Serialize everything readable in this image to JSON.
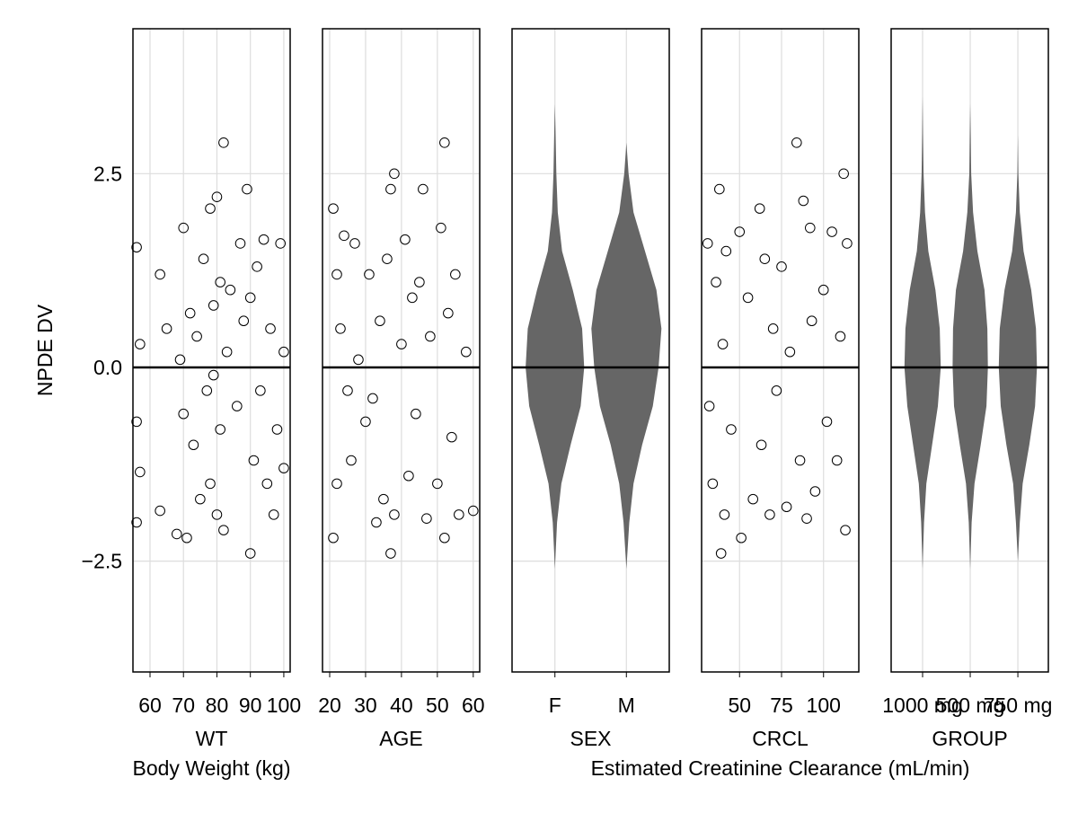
{
  "chart_data": [
    {
      "type": "scatter",
      "xlabel": "WT",
      "xsublabel": "Body Weight (kg)",
      "ylabel": "NPDE DV",
      "xlim": [
        54.9,
        101.9
      ],
      "xticks": [
        60,
        70,
        80,
        90,
        100
      ],
      "ylim": [
        -3.93,
        4.37
      ],
      "yticks": [
        {
          "value": -2.5,
          "label": "−2.5"
        },
        {
          "value": 0,
          "label": "0.0"
        },
        2.5
      ],
      "hline": 0,
      "grid": true,
      "color": "#000000",
      "x": [
        56,
        56,
        56,
        57,
        57,
        63,
        63,
        65,
        68,
        69,
        70,
        70,
        71,
        72,
        73,
        74,
        75,
        76,
        77,
        78,
        78,
        79,
        79,
        80,
        80,
        81,
        81,
        82,
        82,
        83,
        84,
        86,
        87,
        88,
        89,
        90,
        90,
        91,
        92,
        93,
        94,
        95,
        96,
        97,
        98,
        99,
        100,
        100
      ],
      "y": [
        1.55,
        -0.7,
        -2.0,
        0.3,
        -1.35,
        1.2,
        -1.85,
        0.5,
        -2.15,
        0.1,
        1.8,
        -0.6,
        -2.2,
        0.7,
        -1.0,
        0.4,
        -1.7,
        1.4,
        -0.3,
        2.05,
        -1.5,
        0.8,
        -0.1,
        2.2,
        -1.9,
        1.1,
        -0.8,
        2.9,
        -2.1,
        0.2,
        1.0,
        -0.5,
        1.6,
        0.6,
        2.3,
        -2.4,
        0.9,
        -1.2,
        1.3,
        -0.3,
        1.65,
        -1.5,
        0.5,
        -1.9,
        -0.8,
        1.6,
        0.2,
        -1.3
      ]
    },
    {
      "type": "scatter",
      "xlabel": "AGE",
      "xlim": [
        18.0,
        61.8
      ],
      "xticks": [
        20,
        30,
        40,
        50,
        60
      ],
      "ylim": [
        -3.93,
        4.37
      ],
      "yticks": [
        -2.5,
        0,
        2.5
      ],
      "hline": 0,
      "grid": true,
      "color": "#000000",
      "x": [
        21,
        21,
        22,
        22,
        23,
        24,
        25,
        26,
        27,
        28,
        30,
        31,
        32,
        33,
        34,
        35,
        36,
        37,
        37,
        38,
        38,
        40,
        41,
        42,
        43,
        44,
        45,
        46,
        47,
        48,
        50,
        51,
        52,
        52,
        53,
        54,
        55,
        56,
        58,
        60
      ],
      "y": [
        2.05,
        -2.2,
        1.2,
        -1.5,
        0.5,
        1.7,
        -0.3,
        -1.2,
        1.6,
        0.1,
        -0.7,
        1.2,
        -0.4,
        -2.0,
        0.6,
        -1.7,
        1.4,
        -2.4,
        2.3,
        2.5,
        -1.9,
        0.3,
        1.65,
        -1.4,
        0.9,
        -0.6,
        1.1,
        2.3,
        -1.95,
        0.4,
        -1.5,
        1.8,
        2.9,
        -2.2,
        0.7,
        -0.9,
        1.2,
        -1.9,
        0.2,
        -1.85
      ]
    },
    {
      "type": "violin",
      "xlabel": "SEX",
      "categories": [
        "F",
        "M"
      ],
      "xlim": [
        0.4,
        2.6
      ],
      "ylim": [
        -3.93,
        4.37
      ],
      "yticks": [
        -2.5,
        0,
        2.5
      ],
      "hline": 0,
      "grid": true,
      "color": "#666666",
      "violins": [
        {
          "y": [
            -2.6,
            -2,
            -1.5,
            -1,
            -0.5,
            0,
            0.5,
            1,
            1.5,
            2,
            2.5,
            3,
            3.4
          ],
          "widths": [
            0,
            0.03,
            0.09,
            0.22,
            0.36,
            0.41,
            0.38,
            0.25,
            0.1,
            0.04,
            0.02,
            0.01,
            0
          ]
        },
        {
          "y": [
            -2.6,
            -2,
            -1.5,
            -1,
            -0.5,
            0,
            0.5,
            1,
            1.5,
            2,
            2.5,
            2.9
          ],
          "widths": [
            0,
            0.04,
            0.1,
            0.22,
            0.37,
            0.45,
            0.49,
            0.42,
            0.26,
            0.1,
            0.03,
            0
          ]
        }
      ]
    },
    {
      "type": "scatter",
      "xlabel": "CRCL",
      "xsublabel": "Estimated Creatinine Clearance (mL/min)",
      "xlim": [
        27.4,
        121.0
      ],
      "xticks": [
        50,
        75,
        100
      ],
      "ylim": [
        -3.93,
        4.37
      ],
      "yticks": [
        -2.5,
        0,
        2.5
      ],
      "hline": 0,
      "grid": true,
      "color": "#000000",
      "x": [
        31,
        32,
        34,
        36,
        38,
        39,
        40,
        41,
        42,
        45,
        50,
        51,
        55,
        58,
        62,
        63,
        65,
        68,
        70,
        72,
        75,
        78,
        80,
        84,
        86,
        88,
        90,
        92,
        93,
        95,
        100,
        102,
        105,
        108,
        110,
        112,
        113,
        114
      ],
      "y": [
        1.6,
        -0.5,
        -1.5,
        1.1,
        2.3,
        -2.4,
        0.3,
        -1.9,
        1.5,
        -0.8,
        1.75,
        -2.2,
        0.9,
        -1.7,
        2.05,
        -1.0,
        1.4,
        -1.9,
        0.5,
        -0.3,
        1.3,
        -1.8,
        0.2,
        2.9,
        -1.2,
        2.15,
        -1.95,
        1.8,
        0.6,
        -1.6,
        1.0,
        -0.7,
        1.75,
        -1.2,
        0.4,
        2.5,
        -2.1,
        1.6
      ]
    },
    {
      "type": "violin",
      "xlabel": "GROUP",
      "categories": [
        "1000 mg",
        "500 mg",
        "750 mg"
      ],
      "xlim": [
        0.34,
        3.64
      ],
      "ylim": [
        -3.93,
        4.37
      ],
      "yticks": [
        -2.5,
        0,
        2.5
      ],
      "hline": 0,
      "grid": true,
      "color": "#666666",
      "violins": [
        {
          "y": [
            -2.6,
            -2,
            -1.5,
            -1,
            -0.5,
            0,
            0.5,
            1,
            1.5,
            2,
            2.5,
            3,
            3.5
          ],
          "widths": [
            0,
            0.03,
            0.08,
            0.2,
            0.32,
            0.38,
            0.36,
            0.27,
            0.12,
            0.05,
            0.02,
            0.01,
            0
          ]
        },
        {
          "y": [
            -2.6,
            -2,
            -1.5,
            -1,
            -0.5,
            0,
            0.5,
            1,
            1.5,
            2,
            2.5,
            3,
            3.4
          ],
          "widths": [
            0,
            0.03,
            0.09,
            0.22,
            0.34,
            0.37,
            0.36,
            0.3,
            0.15,
            0.06,
            0.02,
            0.01,
            0
          ]
        },
        {
          "y": [
            -2.5,
            -2,
            -1.5,
            -1,
            -0.5,
            0,
            0.5,
            1,
            1.5,
            2,
            2.5,
            3
          ],
          "widths": [
            0,
            0.04,
            0.1,
            0.24,
            0.36,
            0.4,
            0.38,
            0.28,
            0.12,
            0.04,
            0.01,
            0
          ]
        }
      ]
    }
  ]
}
